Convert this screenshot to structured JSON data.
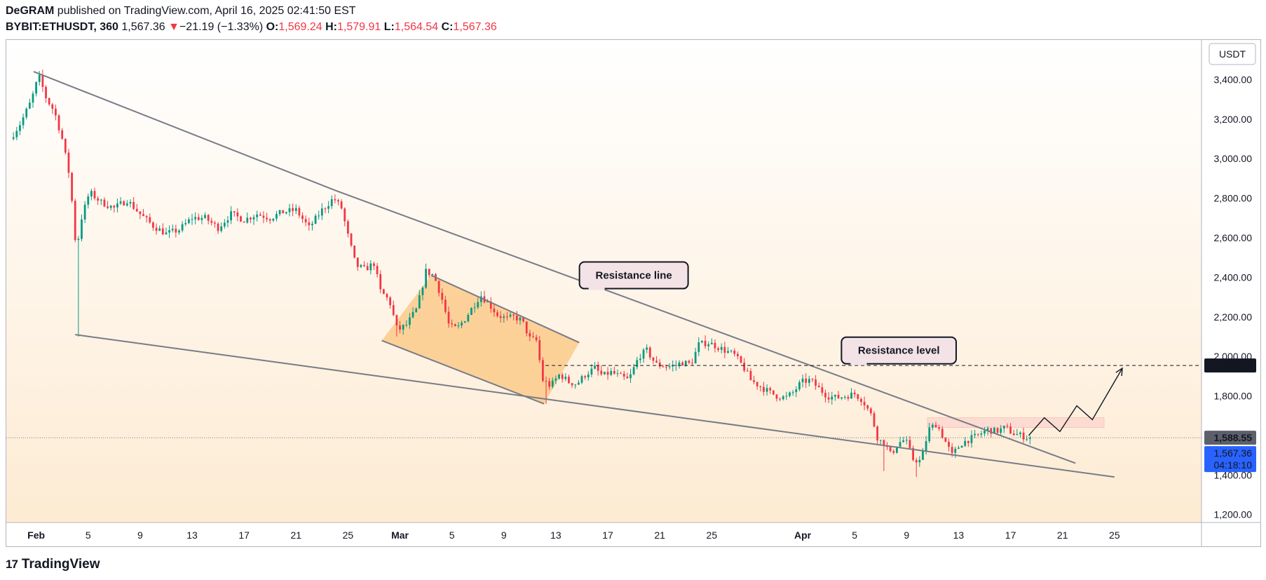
{
  "header": {
    "author": "DeGRAM",
    "published": "published on TradingView.com, April 16, 2025 02:41:50 EST",
    "symbol": "BYBIT:ETHUSDT, 360",
    "last": "1,567.36",
    "change_arrow": "▼",
    "change": "−21.19 (−1.33%)",
    "open_label": "O:",
    "open": "1,569.24",
    "high_label": "H:",
    "high": "1,579.91",
    "low_label": "L:",
    "low": "1,564.54",
    "close_label": "C:",
    "close": "1,567.36"
  },
  "footer": {
    "logo": "17",
    "brand": "TradingView"
  },
  "colors": {
    "up": "#089981",
    "down": "#f23645",
    "bg_top": "#ffffff",
    "bg_bottom": "#fdebd3",
    "channel_fill": "#fbc67f",
    "zone_fill": "#fbd3cd"
  },
  "chart_data": {
    "type": "candlestick",
    "currency": "USDT",
    "y_ticks": [
      "3,400.00",
      "3,200.00",
      "3,000.00",
      "2,800.00",
      "2,600.00",
      "2,400.00",
      "2,200.00",
      "2,000.00",
      "1,800.00",
      "1,600.00",
      "1,400.00",
      "1,200.00"
    ],
    "ylim": [
      1160,
      3600
    ],
    "x_ticks": [
      {
        "label": "Feb",
        "day": 1,
        "bold": true
      },
      {
        "label": "5",
        "day": 5
      },
      {
        "label": "9",
        "day": 9
      },
      {
        "label": "13",
        "day": 13
      },
      {
        "label": "17",
        "day": 17
      },
      {
        "label": "21",
        "day": 21
      },
      {
        "label": "25",
        "day": 25
      },
      {
        "label": "Mar",
        "day": 29,
        "bold": true
      },
      {
        "label": "5",
        "day": 33
      },
      {
        "label": "9",
        "day": 37
      },
      {
        "label": "13",
        "day": 41
      },
      {
        "label": "17",
        "day": 45
      },
      {
        "label": "21",
        "day": 49
      },
      {
        "label": "25",
        "day": 53
      },
      {
        "label": "Apr",
        "day": 60,
        "bold": true
      },
      {
        "label": "5",
        "day": 64
      },
      {
        "label": "9",
        "day": 68
      },
      {
        "label": "13",
        "day": 72
      },
      {
        "label": "17",
        "day": 76
      },
      {
        "label": "21",
        "day": 80
      },
      {
        "label": "25",
        "day": 84
      }
    ],
    "xlim": [
      -1.3,
      90.7
    ],
    "price_keypoints": [
      [
        -1.0,
        3100
      ],
      [
        -0.2,
        3180
      ],
      [
        0.6,
        3290
      ],
      [
        1.2,
        3420
      ],
      [
        1.8,
        3300
      ],
      [
        2.4,
        3240
      ],
      [
        3.0,
        3100
      ],
      [
        3.6,
        2900
      ],
      [
        4.1,
        2520
      ],
      [
        4.4,
        2680
      ],
      [
        5.1,
        2830
      ],
      [
        6.0,
        2780
      ],
      [
        7.0,
        2750
      ],
      [
        8.0,
        2790
      ],
      [
        9.0,
        2720
      ],
      [
        10.0,
        2660
      ],
      [
        11.0,
        2620
      ],
      [
        12.0,
        2640
      ],
      [
        13.0,
        2700
      ],
      [
        14.0,
        2700
      ],
      [
        15.0,
        2650
      ],
      [
        16.0,
        2720
      ],
      [
        17.0,
        2690
      ],
      [
        18.0,
        2720
      ],
      [
        19.0,
        2700
      ],
      [
        20.0,
        2730
      ],
      [
        21.0,
        2740
      ],
      [
        22.0,
        2650
      ],
      [
        23.0,
        2740
      ],
      [
        23.9,
        2800
      ],
      [
        24.5,
        2750
      ],
      [
        25.0,
        2610
      ],
      [
        25.6,
        2460
      ],
      [
        26.3,
        2440
      ],
      [
        27.0,
        2470
      ],
      [
        27.5,
        2330
      ],
      [
        28.2,
        2280
      ],
      [
        28.8,
        2130
      ],
      [
        29.5,
        2160
      ],
      [
        30.3,
        2240
      ],
      [
        31.0,
        2430
      ],
      [
        31.6,
        2410
      ],
      [
        32.2,
        2300
      ],
      [
        32.8,
        2150
      ],
      [
        33.4,
        2140
      ],
      [
        34.0,
        2190
      ],
      [
        34.7,
        2260
      ],
      [
        35.2,
        2310
      ],
      [
        35.8,
        2270
      ],
      [
        36.5,
        2210
      ],
      [
        37.2,
        2190
      ],
      [
        37.8,
        2200
      ],
      [
        38.4,
        2180
      ],
      [
        39.0,
        2090
      ],
      [
        39.5,
        2080
      ],
      [
        40.0,
        1880
      ],
      [
        40.6,
        1850
      ],
      [
        41.3,
        1910
      ],
      [
        42.0,
        1870
      ],
      [
        42.6,
        1860
      ],
      [
        43.3,
        1910
      ],
      [
        44.0,
        1940
      ],
      [
        44.6,
        1900
      ],
      [
        45.2,
        1920
      ],
      [
        45.9,
        1900
      ],
      [
        46.6,
        1880
      ],
      [
        47.4,
        2000
      ],
      [
        48.0,
        2030
      ],
      [
        48.7,
        1960
      ],
      [
        49.4,
        1950
      ],
      [
        50.0,
        1950
      ],
      [
        50.7,
        1970
      ],
      [
        51.4,
        1960
      ],
      [
        52.0,
        2060
      ],
      [
        52.7,
        2070
      ],
      [
        53.4,
        2050
      ],
      [
        54.0,
        2030
      ],
      [
        54.7,
        2010
      ],
      [
        55.4,
        1950
      ],
      [
        56.0,
        1880
      ],
      [
        56.7,
        1850
      ],
      [
        57.4,
        1820
      ],
      [
        58.0,
        1800
      ],
      [
        58.7,
        1790
      ],
      [
        59.3,
        1820
      ],
      [
        59.9,
        1870
      ],
      [
        60.6,
        1880
      ],
      [
        61.2,
        1840
      ],
      [
        61.9,
        1800
      ],
      [
        62.6,
        1790
      ],
      [
        63.3,
        1800
      ],
      [
        64.0,
        1810
      ],
      [
        64.6,
        1780
      ],
      [
        65.3,
        1700
      ],
      [
        65.8,
        1580
      ],
      [
        66.3,
        1560
      ],
      [
        66.8,
        1500
      ],
      [
        67.3,
        1560
      ],
      [
        67.9,
        1580
      ],
      [
        68.5,
        1480
      ],
      [
        69.1,
        1470
      ],
      [
        69.7,
        1630
      ],
      [
        70.3,
        1660
      ],
      [
        70.9,
        1580
      ],
      [
        71.5,
        1500
      ],
      [
        72.2,
        1560
      ],
      [
        72.8,
        1580
      ],
      [
        73.5,
        1600
      ],
      [
        74.2,
        1630
      ],
      [
        74.9,
        1620
      ],
      [
        75.6,
        1640
      ],
      [
        76.2,
        1610
      ],
      [
        76.8,
        1600
      ],
      [
        77.4,
        1588
      ]
    ],
    "lines": [
      {
        "name": "resistance-line",
        "from": [
          0.8,
          3440
        ],
        "to": [
          24.0,
          2840
        ]
      },
      {
        "name": "resistance-line-continuation",
        "from": [
          24.0,
          2840
        ],
        "to": [
          81.0,
          1460
        ]
      },
      {
        "name": "support-line",
        "from": [
          4.0,
          2110
        ],
        "to": [
          84.0,
          1390
        ]
      }
    ],
    "channel": {
      "upper": [
        [
          31.4,
          2410
        ],
        [
          42.8,
          2070
        ]
      ],
      "lower": [
        [
          27.6,
          2080
        ],
        [
          40.1,
          1760
        ]
      ]
    },
    "resistance_level": 1953.99,
    "resistance_level_from_day": 40.2,
    "demand_zone": {
      "day_from": 69.6,
      "day_to": 83.2,
      "high": 1690,
      "low": 1640
    },
    "forecast_path": [
      [
        77.4,
        1600
      ],
      [
        78.6,
        1690
      ],
      [
        79.8,
        1620
      ],
      [
        81.1,
        1750
      ],
      [
        82.3,
        1680
      ],
      [
        84.6,
        1940
      ]
    ],
    "current_price_line": 1588.55,
    "annotations": [
      {
        "name": "resistance-line-callout",
        "text": "Resistance line",
        "at_day": 47.0,
        "at_price": 2410,
        "pointer_day": 44.2,
        "pointer_price": 2360
      },
      {
        "name": "resistance-level-callout",
        "text": "Resistance level",
        "at_day": 67.4,
        "at_price": 2030,
        "pointer_day": 65.4,
        "pointer_price": 1970
      }
    ],
    "price_labels": {
      "resistance": "1,953.99",
      "prev_close": "1,588.55",
      "last": "1,567.36",
      "countdown": "04:18:10"
    },
    "grid": false
  }
}
